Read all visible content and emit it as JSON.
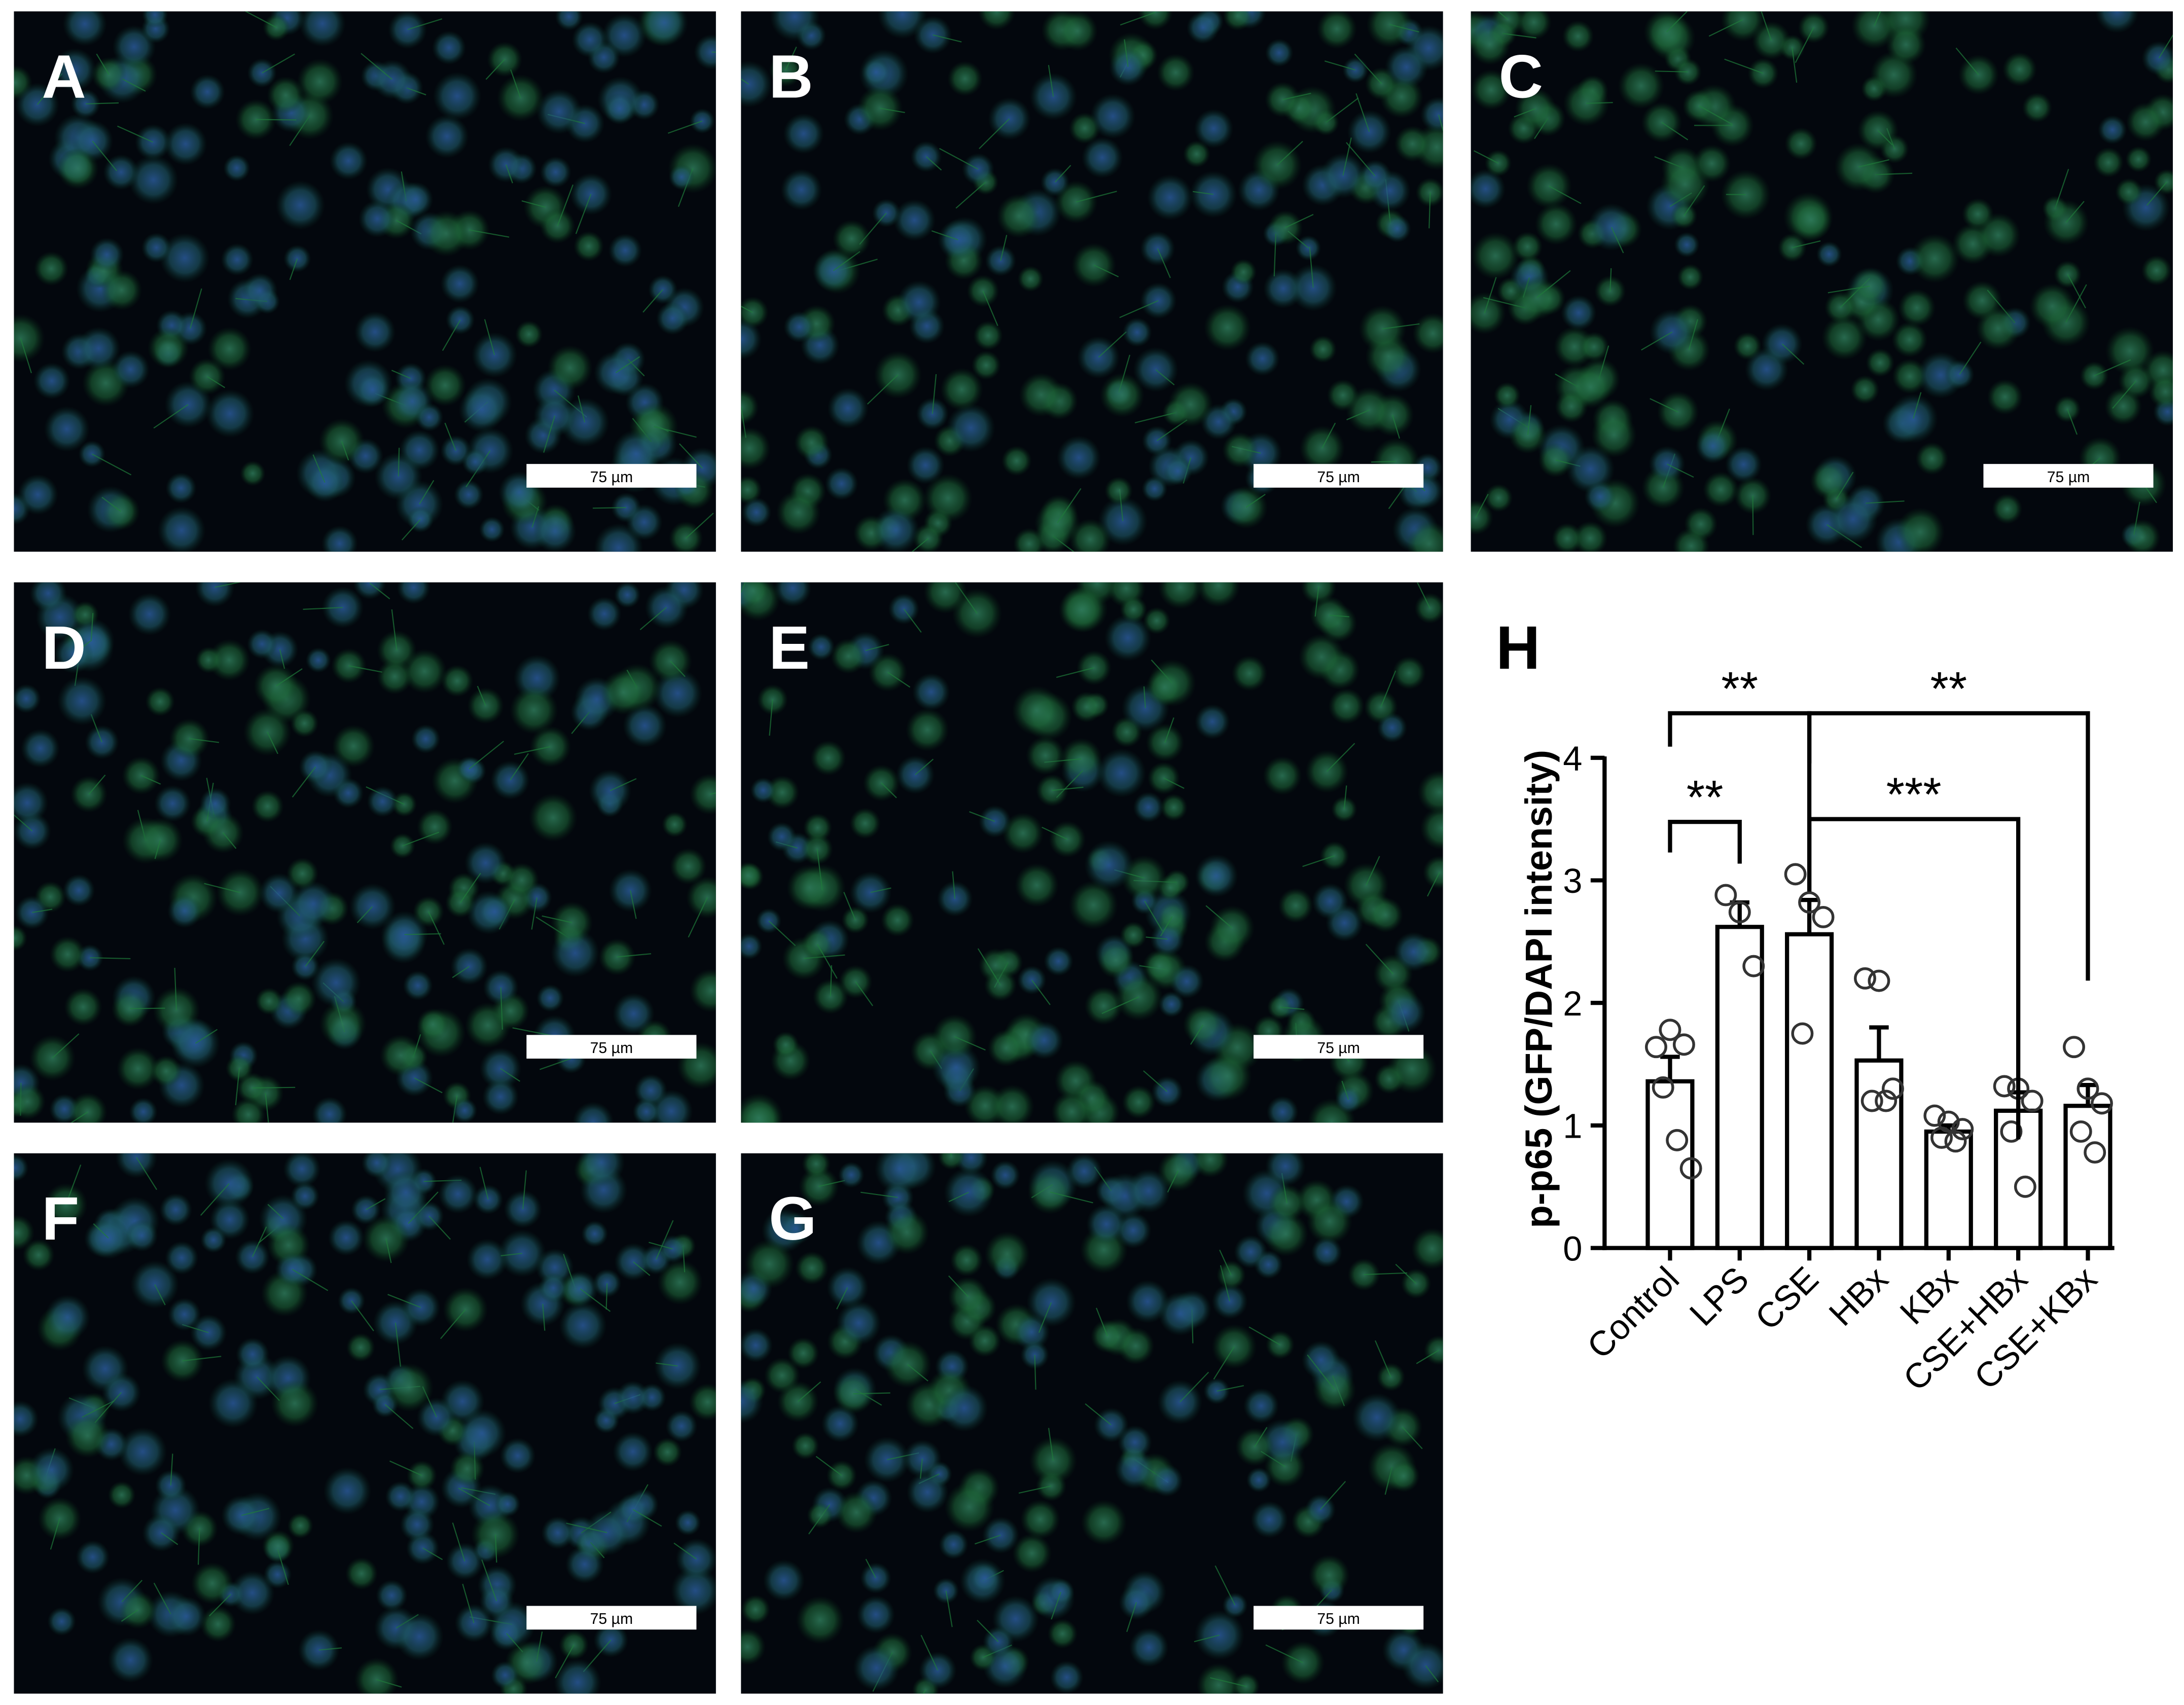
{
  "panels": [
    {
      "label": "A",
      "scale_bar": "75 µm"
    },
    {
      "label": "B",
      "scale_bar": "75 µm"
    },
    {
      "label": "C",
      "scale_bar": "75 µm"
    },
    {
      "label": "D",
      "scale_bar": "75 µm"
    },
    {
      "label": "E",
      "scale_bar": "75 µm"
    },
    {
      "label": "F",
      "scale_bar": "75 µm"
    },
    {
      "label": "G",
      "scale_bar": "75 µm"
    }
  ],
  "chart_data": {
    "type": "bar",
    "panel_label": "H",
    "ylabel": "p-p65 (GFP/DAPI intensity)",
    "categories": [
      "Control",
      "LPS",
      "CSE",
      "HBx",
      "KBx",
      "CSE+HBx",
      "CSE+KBx"
    ],
    "values": [
      1.36,
      2.62,
      2.56,
      1.53,
      0.95,
      1.12,
      1.16
    ],
    "errors": [
      0.2,
      0.2,
      0.28,
      0.27,
      0.05,
      0.15,
      0.17
    ],
    "points": [
      [
        1.64,
        1.78,
        1.66,
        1.31,
        0.88,
        0.65
      ],
      [
        2.88,
        2.74,
        2.3
      ],
      [
        3.05,
        2.82,
        2.7,
        1.75
      ],
      [
        2.2,
        2.18,
        1.3,
        1.2,
        1.2
      ],
      [
        1.08,
        1.03,
        0.97,
        0.9,
        0.87
      ],
      [
        1.32,
        1.3,
        1.2,
        0.95,
        0.5
      ],
      [
        1.64,
        1.3,
        1.18,
        0.95,
        0.78
      ]
    ],
    "color": "#ffffff",
    "ylim": [
      0,
      4
    ],
    "yticks": [
      0,
      1,
      2,
      3,
      4
    ],
    "comparisons": [
      {
        "groups": [
          "Control",
          "LPS"
        ],
        "label": "**"
      },
      {
        "groups": [
          "Control",
          "CSE"
        ],
        "label": "**"
      },
      {
        "groups": [
          "CSE",
          "CSE+HBx"
        ],
        "label": "***"
      },
      {
        "groups": [
          "CSE",
          "CSE+KBx"
        ],
        "label": "**"
      }
    ]
  }
}
